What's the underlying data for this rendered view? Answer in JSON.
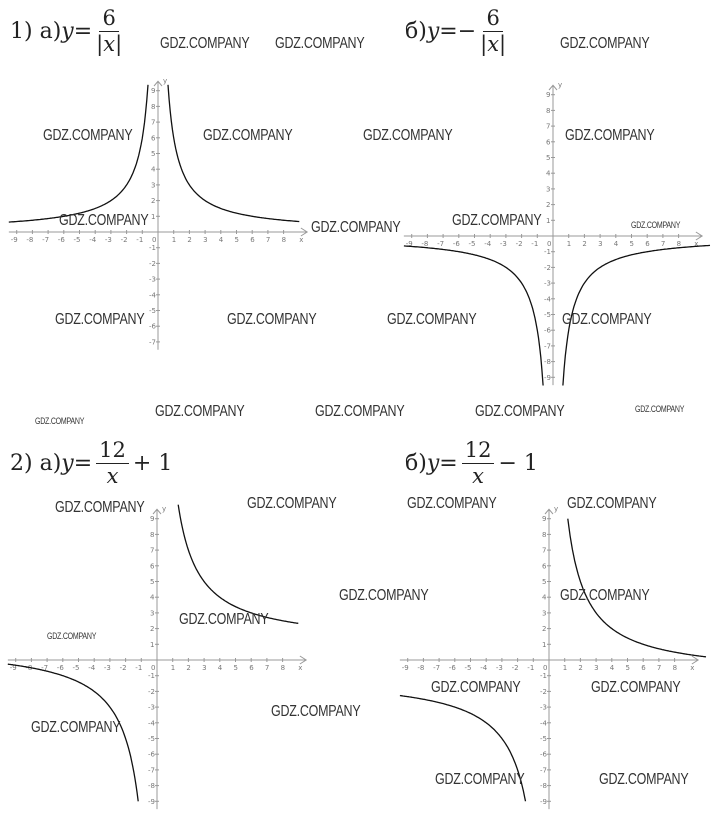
{
  "problems": [
    {
      "prefix": "1) а) ",
      "var": "y",
      "eq": " = ",
      "sign": "",
      "num": "6",
      "den": "|x|",
      "suffix": ""
    },
    {
      "prefix": "б) ",
      "var": "y",
      "eq": " = ",
      "sign": "−",
      "num": "6",
      "den": "|x|",
      "suffix": ""
    },
    {
      "prefix": "2) а) ",
      "var": "y",
      "eq": " = ",
      "sign": "",
      "num": "12",
      "den": "x",
      "suffix": " + 1"
    },
    {
      "prefix": "б) ",
      "var": "y",
      "eq": " = ",
      "sign": "",
      "num": "12",
      "den": "x",
      "suffix": " − 1"
    }
  ],
  "watermark": "GDZ.COMPANY",
  "colors": {
    "curve": "#111111",
    "axis": "#999999",
    "text": "#222222"
  },
  "chart_data": [
    {
      "type": "line",
      "title": "y = 6/|x|",
      "xlabel": "x",
      "ylabel": "y",
      "xlim": [
        -9,
        8
      ],
      "ylim": [
        -7,
        9
      ],
      "grid": false,
      "function": {
        "numerator": 6,
        "abs": true,
        "shift": 0
      },
      "branches": [
        [
          -9.5,
          -0.64
        ],
        [
          0.64,
          9
        ]
      ]
    },
    {
      "type": "line",
      "title": "y = −6/|x|",
      "xlabel": "x",
      "ylabel": "y",
      "xlim": [
        -9,
        8
      ],
      "ylim": [
        -9,
        9
      ],
      "grid": false,
      "function": {
        "numerator": -6,
        "abs": true,
        "shift": 0
      },
      "branches": [
        [
          -9.5,
          -0.63
        ],
        [
          0.63,
          10
        ]
      ]
    },
    {
      "type": "line",
      "title": "y = 12/x + 1",
      "xlabel": "x",
      "ylabel": "y",
      "xlim": [
        -9,
        8
      ],
      "ylim": [
        -9,
        9
      ],
      "grid": false,
      "function": {
        "numerator": 12,
        "abs": false,
        "shift": 1
      },
      "branches": [
        [
          -9.5,
          -1.2
        ],
        [
          1.35,
          9
        ]
      ]
    },
    {
      "type": "line",
      "title": "y = 12/x − 1",
      "xlabel": "x",
      "ylabel": "y",
      "xlim": [
        -9,
        8
      ],
      "ylim": [
        -9,
        9
      ],
      "grid": false,
      "function": {
        "numerator": 12,
        "abs": false,
        "shift": -1
      },
      "branches": [
        [
          -9.5,
          -1.5
        ],
        [
          1.2,
          10
        ]
      ]
    }
  ]
}
